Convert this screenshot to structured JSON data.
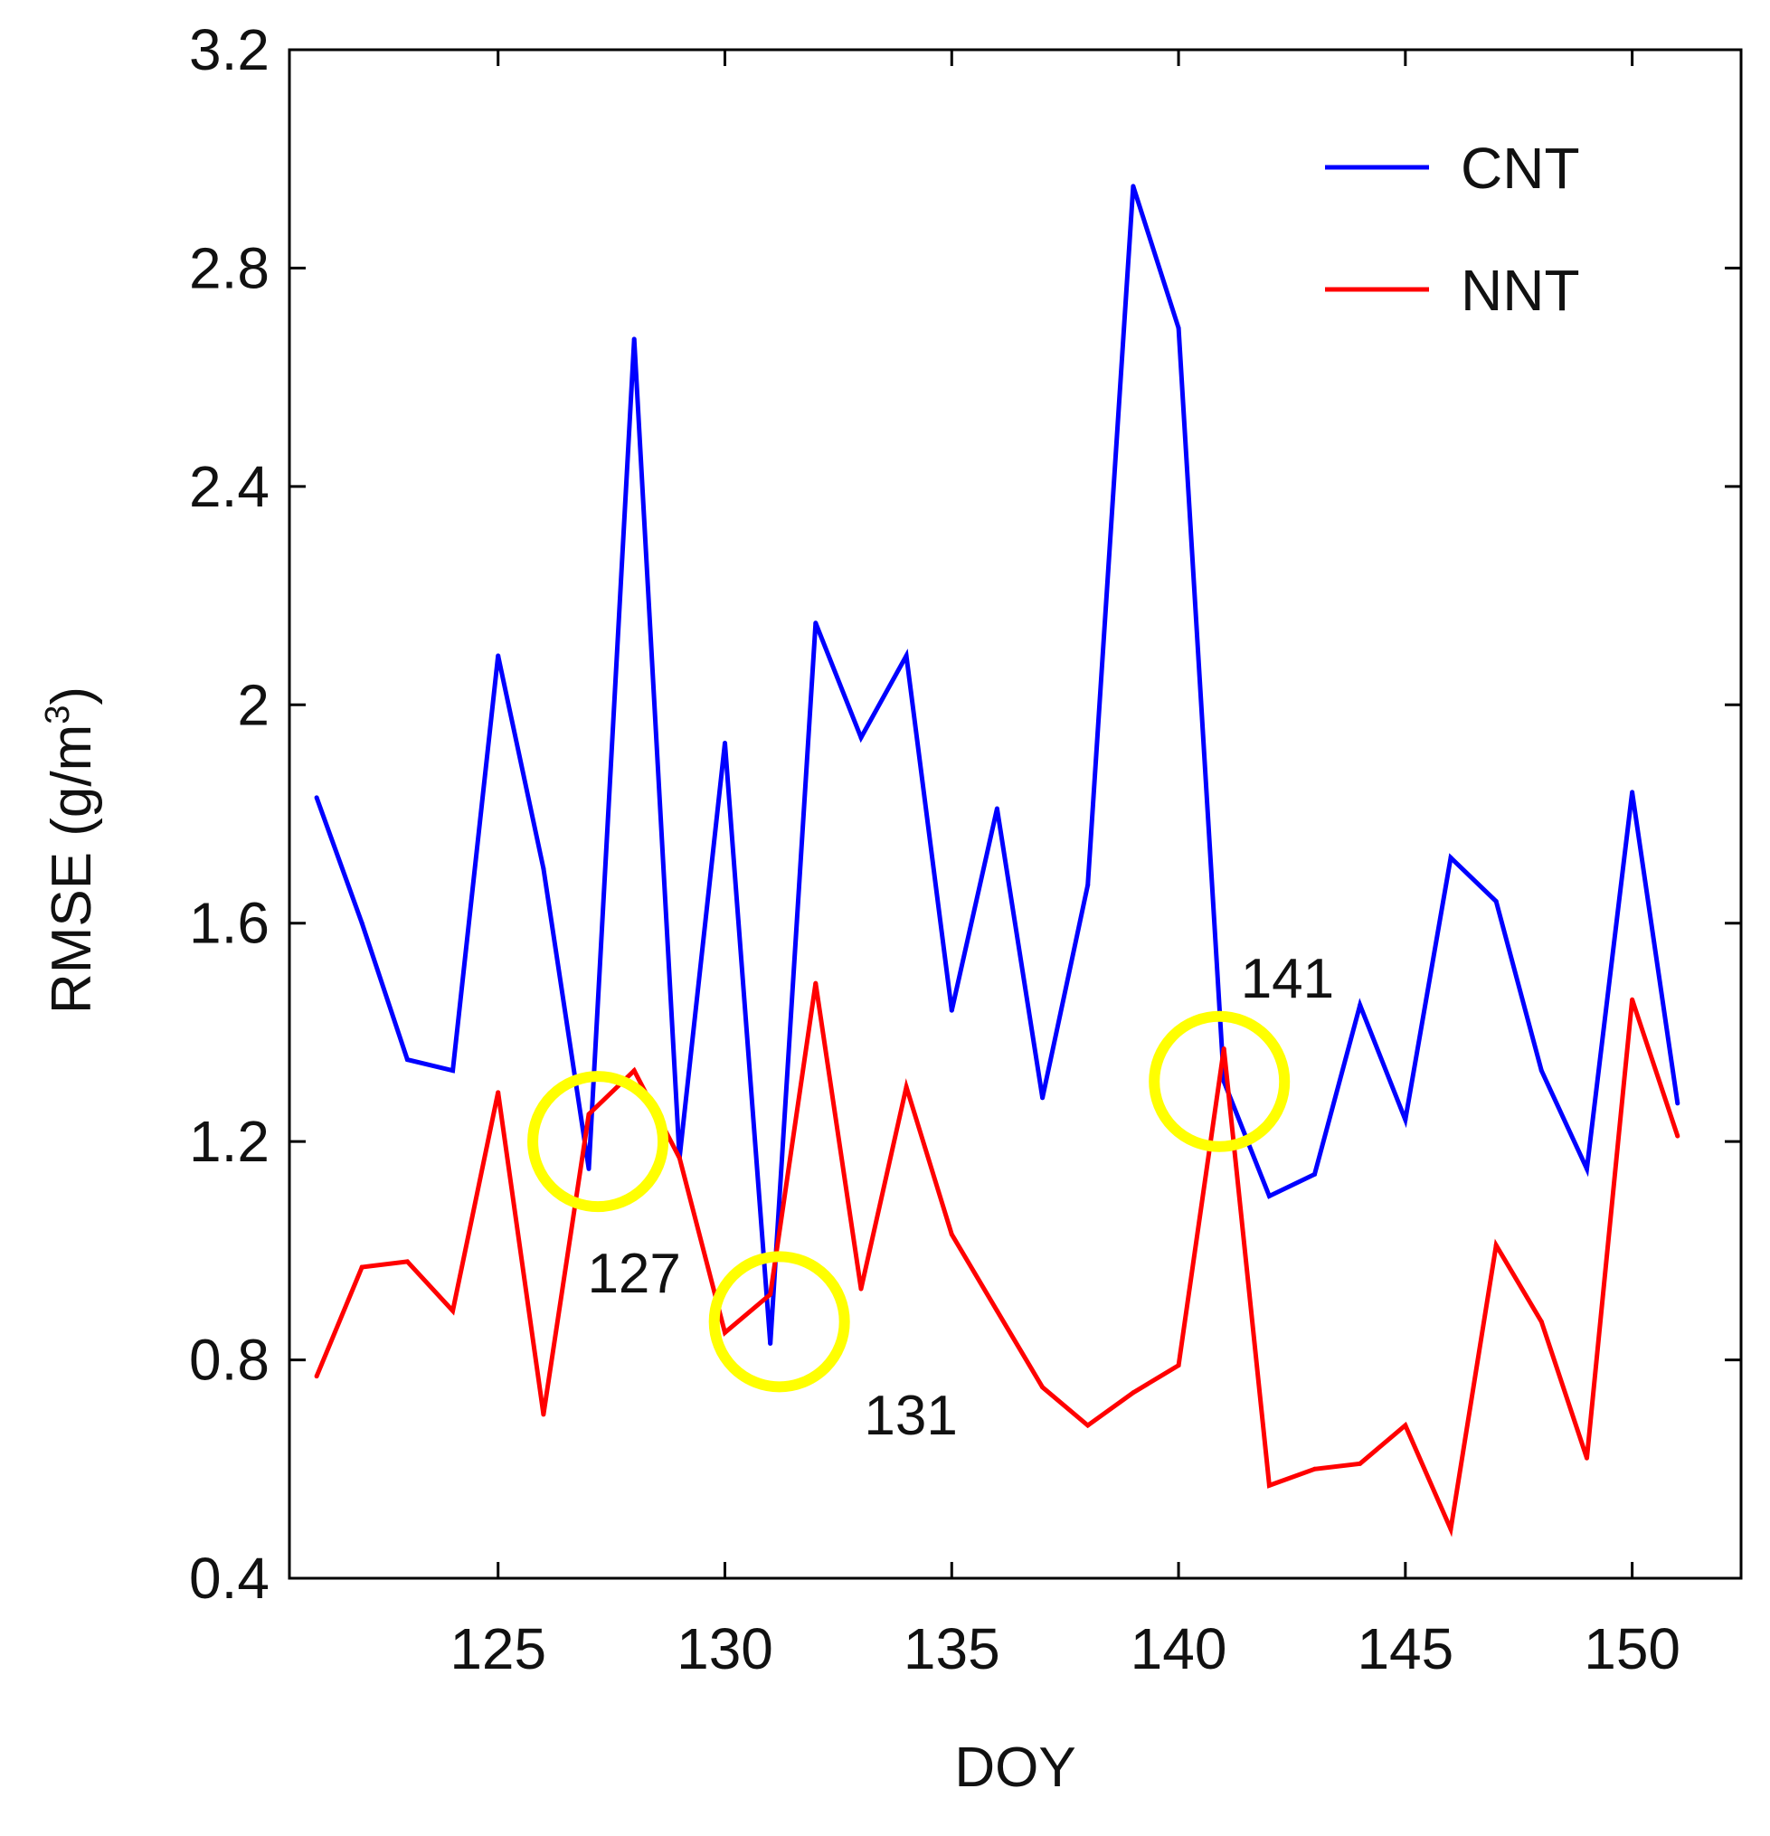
{
  "chart_data": {
    "type": "line",
    "title": "",
    "xlabel": "DOY",
    "ylabel_main": "RMSE (g/m",
    "ylabel_sup": "3",
    "ylabel_close": ")",
    "xlim": [
      120.4,
      152.4
    ],
    "ylim": [
      0.4,
      3.2
    ],
    "xticks": [
      125,
      130,
      135,
      140,
      145,
      150
    ],
    "yticks": [
      0.4,
      0.8,
      1.2,
      1.6,
      2,
      2.4,
      2.8,
      3.2
    ],
    "ytick_labels": [
      "0.4",
      "0.8",
      "1.2",
      "1.6",
      "2",
      "2.4",
      "2.8",
      "3.2"
    ],
    "grid": false,
    "legend_position": "top-right",
    "x": [
      121,
      122,
      123,
      124,
      125,
      126,
      127,
      128,
      129,
      130,
      131,
      132,
      133,
      134,
      135,
      136,
      137,
      138,
      139,
      140,
      141,
      142,
      143,
      144,
      145,
      146,
      147,
      148,
      149,
      150,
      151
    ],
    "series": [
      {
        "name": "CNT",
        "color": "#0000ff",
        "values": [
          1.83,
          1.6,
          1.35,
          1.33,
          2.09,
          1.7,
          1.15,
          2.67,
          1.17,
          1.93,
          0.83,
          2.15,
          1.94,
          2.09,
          1.44,
          1.81,
          1.28,
          1.67,
          2.95,
          2.69,
          1.31,
          1.1,
          1.14,
          1.45,
          1.24,
          1.72,
          1.64,
          1.33,
          1.15,
          1.84,
          1.27
        ]
      },
      {
        "name": "NNT",
        "color": "#ff0000",
        "values": [
          0.77,
          0.97,
          0.98,
          0.89,
          1.29,
          0.7,
          1.25,
          1.33,
          1.17,
          0.85,
          0.92,
          1.49,
          0.93,
          1.3,
          1.03,
          0.89,
          0.75,
          0.68,
          0.74,
          0.79,
          1.37,
          0.57,
          0.6,
          0.61,
          0.68,
          0.49,
          1.01,
          0.87,
          0.62,
          1.46,
          1.21
        ]
      }
    ],
    "annotations": [
      {
        "label": "127",
        "x": 127.2,
        "y": 1.2,
        "label_x": 128.0,
        "label_y": 0.96
      },
      {
        "label": "131",
        "x": 131.2,
        "y": 0.87,
        "label_x": 134.1,
        "label_y": 0.7
      },
      {
        "label": "141",
        "x": 140.9,
        "y": 1.31,
        "label_x": 142.4,
        "label_y": 1.5
      }
    ],
    "annotation_color": "#ffff00"
  }
}
